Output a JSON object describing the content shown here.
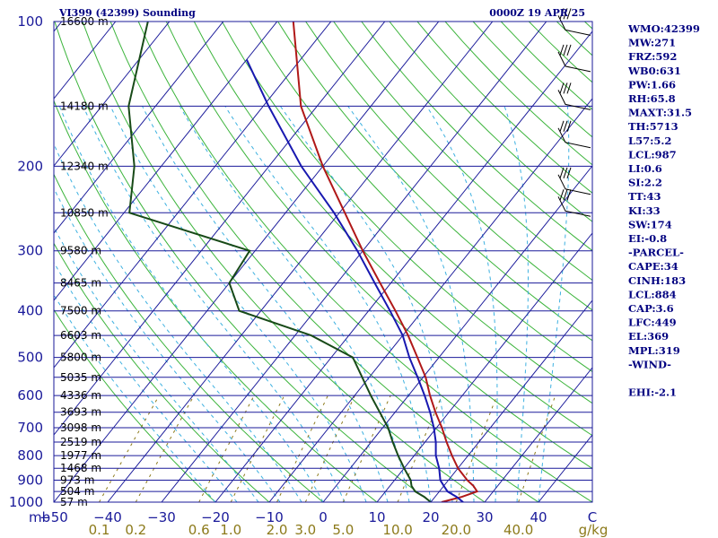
{
  "header": {
    "station": "VI399 (42399) Sounding",
    "time": "0000Z 19 APR 25"
  },
  "indices": [
    "WMO:42399",
    "MW:271",
    "FRZ:592",
    "WB0:631",
    "PW:1.66",
    "RH:65.8",
    "MAXT:31.5",
    "TH:5713",
    "L57:5.2",
    "LCL:987",
    "LI:0.6",
    "SI:2.2",
    "TT:43",
    "KI:33",
    "SW:174",
    "EI:-0.8",
    "-PARCEL-",
    "CAPE:34",
    "CINH:183",
    "LCL:884",
    "CAP:3.6",
    "LFC:449",
    "EL:369",
    "MPL:319",
    "-WIND-",
    "",
    "EHI:-2.1"
  ],
  "colors": {
    "isobar": "#1a1a9a",
    "isotherm": "#1a1a9a",
    "dry_adiabat": "#3cb43c",
    "moist_adiabat": "#3cb0e0",
    "mixing_ratio": "#8c7a1a",
    "temperature": "#b01818",
    "dewpoint": "#184a18",
    "parcel": "#1818b0",
    "wind": "#000000",
    "text": "#000080"
  },
  "chart_data": {
    "type": "skew-t",
    "x_axis_unit": "C",
    "y_axis_unit": "mb",
    "mixing_ratio_unit": "g/kg",
    "pressure_range": [
      100,
      1000
    ],
    "temperature_range": [
      -50,
      50
    ],
    "temperature_ticks": [
      "−50",
      "−40",
      "−30",
      "−20",
      "−10",
      "0",
      "10",
      "20",
      "30",
      "40",
      "C"
    ],
    "temperature_tick_values": [
      -50,
      -40,
      -30,
      -20,
      -10,
      0,
      10,
      20,
      30,
      40
    ],
    "pressure_labels": [
      {
        "p": 100,
        "label": "100"
      },
      {
        "p": 200,
        "label": "200"
      },
      {
        "p": 300,
        "label": "300"
      },
      {
        "p": 400,
        "label": "400"
      },
      {
        "p": 500,
        "label": "500"
      },
      {
        "p": 600,
        "label": "600"
      },
      {
        "p": 700,
        "label": "700"
      },
      {
        "p": 800,
        "label": "800"
      },
      {
        "p": 900,
        "label": "900"
      },
      {
        "p": 1000,
        "label": "1000"
      }
    ],
    "height_labels": [
      {
        "p": 100,
        "label": "16600 m"
      },
      {
        "p": 150,
        "label": "14180 m"
      },
      {
        "p": 200,
        "label": "12340 m"
      },
      {
        "p": 250,
        "label": "10850 m"
      },
      {
        "p": 300,
        "label": "9580 m"
      },
      {
        "p": 350,
        "label": "8465 m"
      },
      {
        "p": 400,
        "label": "7500 m"
      },
      {
        "p": 450,
        "label": "6603 m"
      },
      {
        "p": 500,
        "label": "5800 m"
      },
      {
        "p": 550,
        "label": "5035 m"
      },
      {
        "p": 600,
        "label": "4336 m"
      },
      {
        "p": 650,
        "label": "3693 m"
      },
      {
        "p": 700,
        "label": "3098 m"
      },
      {
        "p": 750,
        "label": "2519 m"
      },
      {
        "p": 800,
        "label": "1977 m"
      },
      {
        "p": 850,
        "label": "1468 m"
      },
      {
        "p": 900,
        "label": "973 m"
      },
      {
        "p": 950,
        "label": "504 m"
      },
      {
        "p": 1000,
        "label": "57 m"
      }
    ],
    "mixing_ratio_labels": [
      {
        "w": 0.1,
        "label": "0.1"
      },
      {
        "w": 0.2,
        "label": "0.2"
      },
      {
        "w": 0.6,
        "label": "0.6"
      },
      {
        "w": 1.0,
        "label": "1.0"
      },
      {
        "w": 2.0,
        "label": "2.0"
      },
      {
        "w": 3.0,
        "label": "3.0"
      },
      {
        "w": 5.0,
        "label": "5.0"
      },
      {
        "w": 10.0,
        "label": "10.0"
      },
      {
        "w": 20.0,
        "label": "20.0"
      },
      {
        "w": 40.0,
        "label": "40.0"
      },
      {
        "w": null,
        "label": "g/kg"
      }
    ],
    "series": [
      {
        "key": "temperature",
        "points": [
          {
            "p": 1000,
            "t": 22
          },
          {
            "p": 975,
            "t": 25
          },
          {
            "p": 950,
            "t": 27
          },
          {
            "p": 925,
            "t": 25.5
          },
          {
            "p": 900,
            "t": 23.5
          },
          {
            "p": 850,
            "t": 20
          },
          {
            "p": 800,
            "t": 17
          },
          {
            "p": 750,
            "t": 14
          },
          {
            "p": 700,
            "t": 11
          },
          {
            "p": 650,
            "t": 7.5
          },
          {
            "p": 600,
            "t": 4
          },
          {
            "p": 550,
            "t": 0.5
          },
          {
            "p": 500,
            "t": -4
          },
          {
            "p": 450,
            "t": -9
          },
          {
            "p": 400,
            "t": -15
          },
          {
            "p": 350,
            "t": -22
          },
          {
            "p": 300,
            "t": -30
          },
          {
            "p": 250,
            "t": -39
          },
          {
            "p": 200,
            "t": -50
          },
          {
            "p": 150,
            "t": -63
          },
          {
            "p": 100,
            "t": -77
          }
        ]
      },
      {
        "key": "dewpoint",
        "points": [
          {
            "p": 1000,
            "t": 20
          },
          {
            "p": 975,
            "t": 18
          },
          {
            "p": 950,
            "t": 15.5
          },
          {
            "p": 925,
            "t": 14
          },
          {
            "p": 900,
            "t": 13
          },
          {
            "p": 850,
            "t": 10
          },
          {
            "p": 800,
            "t": 7
          },
          {
            "p": 750,
            "t": 4
          },
          {
            "p": 700,
            "t": 1
          },
          {
            "p": 600,
            "t": -7
          },
          {
            "p": 500,
            "t": -16
          },
          {
            "p": 450,
            "t": -27
          },
          {
            "p": 400,
            "t": -44
          },
          {
            "p": 350,
            "t": -50
          },
          {
            "p": 300,
            "t": -51
          },
          {
            "p": 250,
            "t": -79
          },
          {
            "p": 200,
            "t": -85
          },
          {
            "p": 150,
            "t": -95
          },
          {
            "p": 100,
            "t": -104
          }
        ]
      },
      {
        "key": "parcel",
        "points": [
          {
            "p": 1000,
            "t": 26
          },
          {
            "p": 975,
            "t": 24
          },
          {
            "p": 950,
            "t": 21.5
          },
          {
            "p": 925,
            "t": 20
          },
          {
            "p": 900,
            "t": 18.5
          },
          {
            "p": 850,
            "t": 16.5
          },
          {
            "p": 800,
            "t": 14
          },
          {
            "p": 750,
            "t": 12
          },
          {
            "p": 700,
            "t": 9.5
          },
          {
            "p": 650,
            "t": 6.5
          },
          {
            "p": 600,
            "t": 3
          },
          {
            "p": 550,
            "t": -1
          },
          {
            "p": 500,
            "t": -5.5
          },
          {
            "p": 450,
            "t": -10
          },
          {
            "p": 400,
            "t": -16
          },
          {
            "p": 350,
            "t": -23
          },
          {
            "p": 300,
            "t": -31
          },
          {
            "p": 250,
            "t": -41
          },
          {
            "p": 200,
            "t": -54
          },
          {
            "p": 150,
            "t": -69
          },
          {
            "p": 120,
            "t": -80
          }
        ]
      }
    ],
    "winds": [
      {
        "p": 105
      },
      {
        "p": 125
      },
      {
        "p": 150
      },
      {
        "p": 180
      },
      {
        "p": 225
      },
      {
        "p": 250
      }
    ]
  }
}
